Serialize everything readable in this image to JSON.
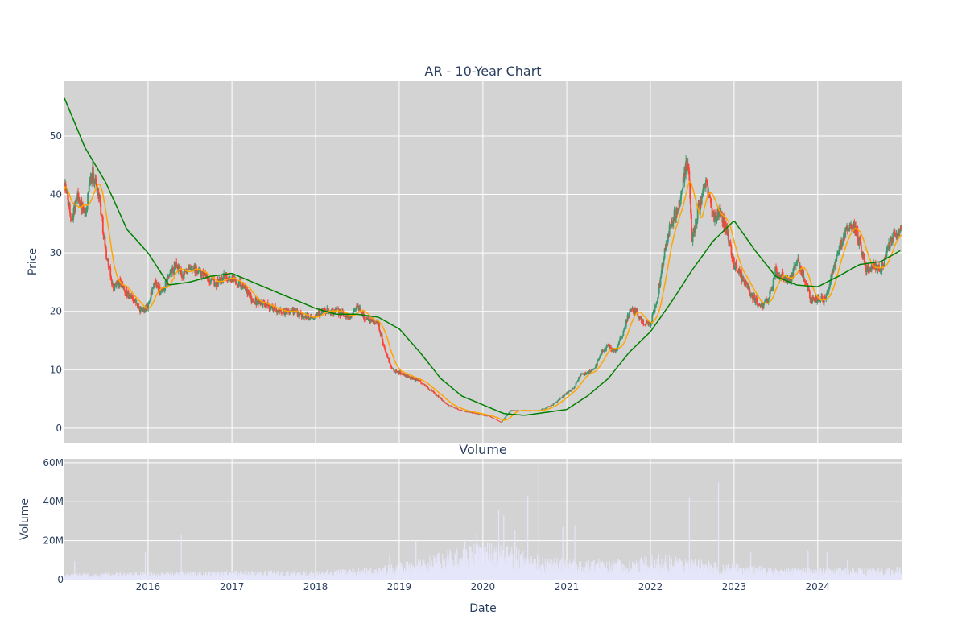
{
  "chart_data": [
    {
      "type": "candlestick",
      "title": "AR - 10-Year Chart",
      "xlabel": "",
      "ylabel": "Price",
      "xlim": [
        "2015-01-01",
        "2025-01-01"
      ],
      "ylim": [
        -2.5,
        59.5
      ],
      "yticks": [
        0,
        10,
        20,
        30,
        40,
        50
      ],
      "grid": true,
      "colors": {
        "background": "#d3d3d3",
        "grid": "#ffffff",
        "up": "#3d9970",
        "down": "#ff4136",
        "ma_short": "#ffa500",
        "ma_long": "#008000"
      },
      "price_anchors": [
        [
          "2015-01-01",
          42
        ],
        [
          "2015-02-01",
          36
        ],
        [
          "2015-03-01",
          40
        ],
        [
          "2015-04-01",
          36
        ],
        [
          "2015-05-01",
          44
        ],
        [
          "2015-06-01",
          40
        ],
        [
          "2015-07-01",
          30
        ],
        [
          "2015-08-01",
          24
        ],
        [
          "2015-09-01",
          25
        ],
        [
          "2015-10-01",
          23
        ],
        [
          "2015-11-01",
          22
        ],
        [
          "2015-12-01",
          20
        ],
        [
          "2016-01-01",
          21
        ],
        [
          "2016-02-01",
          25
        ],
        [
          "2016-03-01",
          23
        ],
        [
          "2016-04-01",
          26
        ],
        [
          "2016-05-01",
          28
        ],
        [
          "2016-06-01",
          26
        ],
        [
          "2016-07-01",
          27
        ],
        [
          "2016-08-01",
          27
        ],
        [
          "2016-09-01",
          26
        ],
        [
          "2016-10-01",
          25
        ],
        [
          "2016-11-01",
          25
        ],
        [
          "2016-12-01",
          26
        ],
        [
          "2017-02-01",
          25
        ],
        [
          "2017-04-01",
          22
        ],
        [
          "2017-06-01",
          21
        ],
        [
          "2017-08-01",
          20
        ],
        [
          "2017-10-01",
          20
        ],
        [
          "2017-12-01",
          19
        ],
        [
          "2018-02-01",
          20
        ],
        [
          "2018-04-01",
          20
        ],
        [
          "2018-06-01",
          19
        ],
        [
          "2018-07-01",
          21
        ],
        [
          "2018-08-01",
          19
        ],
        [
          "2018-10-01",
          18
        ],
        [
          "2018-11-01",
          13
        ],
        [
          "2018-12-01",
          10
        ],
        [
          "2019-02-01",
          9
        ],
        [
          "2019-04-01",
          8
        ],
        [
          "2019-06-01",
          6
        ],
        [
          "2019-08-01",
          4
        ],
        [
          "2019-10-01",
          3
        ],
        [
          "2019-12-01",
          2.5
        ],
        [
          "2020-02-01",
          2
        ],
        [
          "2020-03-20",
          1
        ],
        [
          "2020-05-01",
          3
        ],
        [
          "2020-07-01",
          3
        ],
        [
          "2020-09-01",
          3
        ],
        [
          "2020-11-01",
          4
        ],
        [
          "2020-12-01",
          5
        ],
        [
          "2021-02-01",
          7
        ],
        [
          "2021-03-01",
          9
        ],
        [
          "2021-05-01",
          10
        ],
        [
          "2021-06-01",
          13
        ],
        [
          "2021-07-01",
          14
        ],
        [
          "2021-08-01",
          13
        ],
        [
          "2021-09-01",
          16
        ],
        [
          "2021-10-01",
          20
        ],
        [
          "2021-11-01",
          20
        ],
        [
          "2021-12-01",
          18
        ],
        [
          "2022-01-01",
          18
        ],
        [
          "2022-02-01",
          22
        ],
        [
          "2022-03-01",
          30
        ],
        [
          "2022-04-01",
          35
        ],
        [
          "2022-05-01",
          38
        ],
        [
          "2022-06-01",
          44
        ],
        [
          "2022-06-15",
          46
        ],
        [
          "2022-07-01",
          32
        ],
        [
          "2022-08-01",
          38
        ],
        [
          "2022-09-01",
          42
        ],
        [
          "2022-10-01",
          36
        ],
        [
          "2022-11-01",
          37
        ],
        [
          "2022-12-01",
          34
        ],
        [
          "2023-01-01",
          28
        ],
        [
          "2023-02-01",
          26
        ],
        [
          "2023-03-01",
          24
        ],
        [
          "2023-04-01",
          22
        ],
        [
          "2023-05-01",
          21
        ],
        [
          "2023-06-01",
          22
        ],
        [
          "2023-07-01",
          27
        ],
        [
          "2023-08-01",
          26
        ],
        [
          "2023-09-01",
          25
        ],
        [
          "2023-10-01",
          29
        ],
        [
          "2023-11-01",
          26
        ],
        [
          "2023-12-01",
          22
        ],
        [
          "2024-01-01",
          22
        ],
        [
          "2024-02-01",
          22
        ],
        [
          "2024-03-01",
          26
        ],
        [
          "2024-04-01",
          30
        ],
        [
          "2024-05-01",
          34
        ],
        [
          "2024-06-01",
          35
        ],
        [
          "2024-07-01",
          32
        ],
        [
          "2024-08-01",
          27
        ],
        [
          "2024-09-01",
          28
        ],
        [
          "2024-10-01",
          27
        ],
        [
          "2024-11-01",
          31
        ],
        [
          "2024-12-01",
          33
        ],
        [
          "2025-01-01",
          34
        ]
      ],
      "ma_long_anchors": [
        [
          "2015-01-01",
          56.5
        ],
        [
          "2015-04-01",
          48
        ],
        [
          "2015-07-01",
          42
        ],
        [
          "2015-10-01",
          34
        ],
        [
          "2016-01-01",
          30
        ],
        [
          "2016-04-01",
          24.5
        ],
        [
          "2016-07-01",
          25
        ],
        [
          "2016-10-01",
          26
        ],
        [
          "2017-01-01",
          26.5
        ],
        [
          "2017-04-01",
          25
        ],
        [
          "2017-07-01",
          23.5
        ],
        [
          "2017-10-01",
          22
        ],
        [
          "2018-01-01",
          20.5
        ],
        [
          "2018-04-01",
          19.5
        ],
        [
          "2018-07-01",
          19.5
        ],
        [
          "2018-10-01",
          19
        ],
        [
          "2019-01-01",
          17
        ],
        [
          "2019-04-01",
          13
        ],
        [
          "2019-07-01",
          8.5
        ],
        [
          "2019-10-01",
          5.5
        ],
        [
          "2020-01-01",
          4
        ],
        [
          "2020-04-01",
          2.5
        ],
        [
          "2020-07-01",
          2.2
        ],
        [
          "2020-10-01",
          2.7
        ],
        [
          "2021-01-01",
          3.2
        ],
        [
          "2021-04-01",
          5.5
        ],
        [
          "2021-07-01",
          8.5
        ],
        [
          "2021-10-01",
          13
        ],
        [
          "2022-01-01",
          16.5
        ],
        [
          "2022-04-01",
          21.5
        ],
        [
          "2022-07-01",
          27
        ],
        [
          "2022-10-01",
          32
        ],
        [
          "2023-01-01",
          35.5
        ],
        [
          "2023-04-01",
          30.5
        ],
        [
          "2023-07-01",
          26
        ],
        [
          "2023-10-01",
          24.5
        ],
        [
          "2024-01-01",
          24.2
        ],
        [
          "2024-04-01",
          26
        ],
        [
          "2024-07-01",
          28
        ],
        [
          "2024-10-01",
          28.5
        ],
        [
          "2025-01-01",
          30.5
        ]
      ]
    },
    {
      "type": "bar",
      "title": "Volume",
      "xlabel": "Date",
      "ylabel": "Volume",
      "ylim": [
        0,
        62000000
      ],
      "yticks": [
        0,
        20000000,
        40000000,
        60000000
      ],
      "ytick_labels": [
        "0",
        "20M",
        "40M",
        "60M"
      ],
      "xtick_labels": [
        "2016",
        "2017",
        "2018",
        "2019",
        "2020",
        "2021",
        "2022",
        "2023",
        "2024"
      ],
      "bar_color": "#e6e6fa",
      "volume_anchors": [
        [
          "2015-01-01",
          2500000
        ],
        [
          "2016-01-01",
          3000000
        ],
        [
          "2017-01-01",
          3500000
        ],
        [
          "2018-01-01",
          3500000
        ],
        [
          "2018-10-01",
          5000000
        ],
        [
          "2019-04-01",
          8000000
        ],
        [
          "2019-10-01",
          13000000
        ],
        [
          "2020-03-01",
          15000000
        ],
        [
          "2020-08-01",
          10000000
        ],
        [
          "2021-01-01",
          8000000
        ],
        [
          "2021-10-01",
          8000000
        ],
        [
          "2022-03-01",
          10000000
        ],
        [
          "2022-10-01",
          7000000
        ],
        [
          "2023-06-01",
          5000000
        ],
        [
          "2024-06-01",
          4500000
        ],
        [
          "2025-01-01",
          5000000
        ]
      ],
      "volume_spikes": [
        [
          "2015-02-15",
          9500000
        ],
        [
          "2015-12-20",
          14000000
        ],
        [
          "2016-05-25",
          23000000
        ],
        [
          "2018-11-20",
          13000000
        ],
        [
          "2019-03-15",
          20000000
        ],
        [
          "2019-10-15",
          21000000
        ],
        [
          "2019-12-05",
          24000000
        ],
        [
          "2020-03-10",
          36000000
        ],
        [
          "2020-04-01",
          33000000
        ],
        [
          "2020-05-20",
          25000000
        ],
        [
          "2020-07-15",
          43000000
        ],
        [
          "2020-09-01",
          59000000
        ],
        [
          "2020-12-15",
          27000000
        ],
        [
          "2021-02-05",
          28000000
        ],
        [
          "2022-06-20",
          42000000
        ],
        [
          "2022-10-25",
          50000000
        ],
        [
          "2023-03-15",
          14000000
        ],
        [
          "2023-11-20",
          15000000
        ],
        [
          "2024-02-10",
          14000000
        ],
        [
          "2024-05-10",
          10000000
        ]
      ]
    }
  ]
}
